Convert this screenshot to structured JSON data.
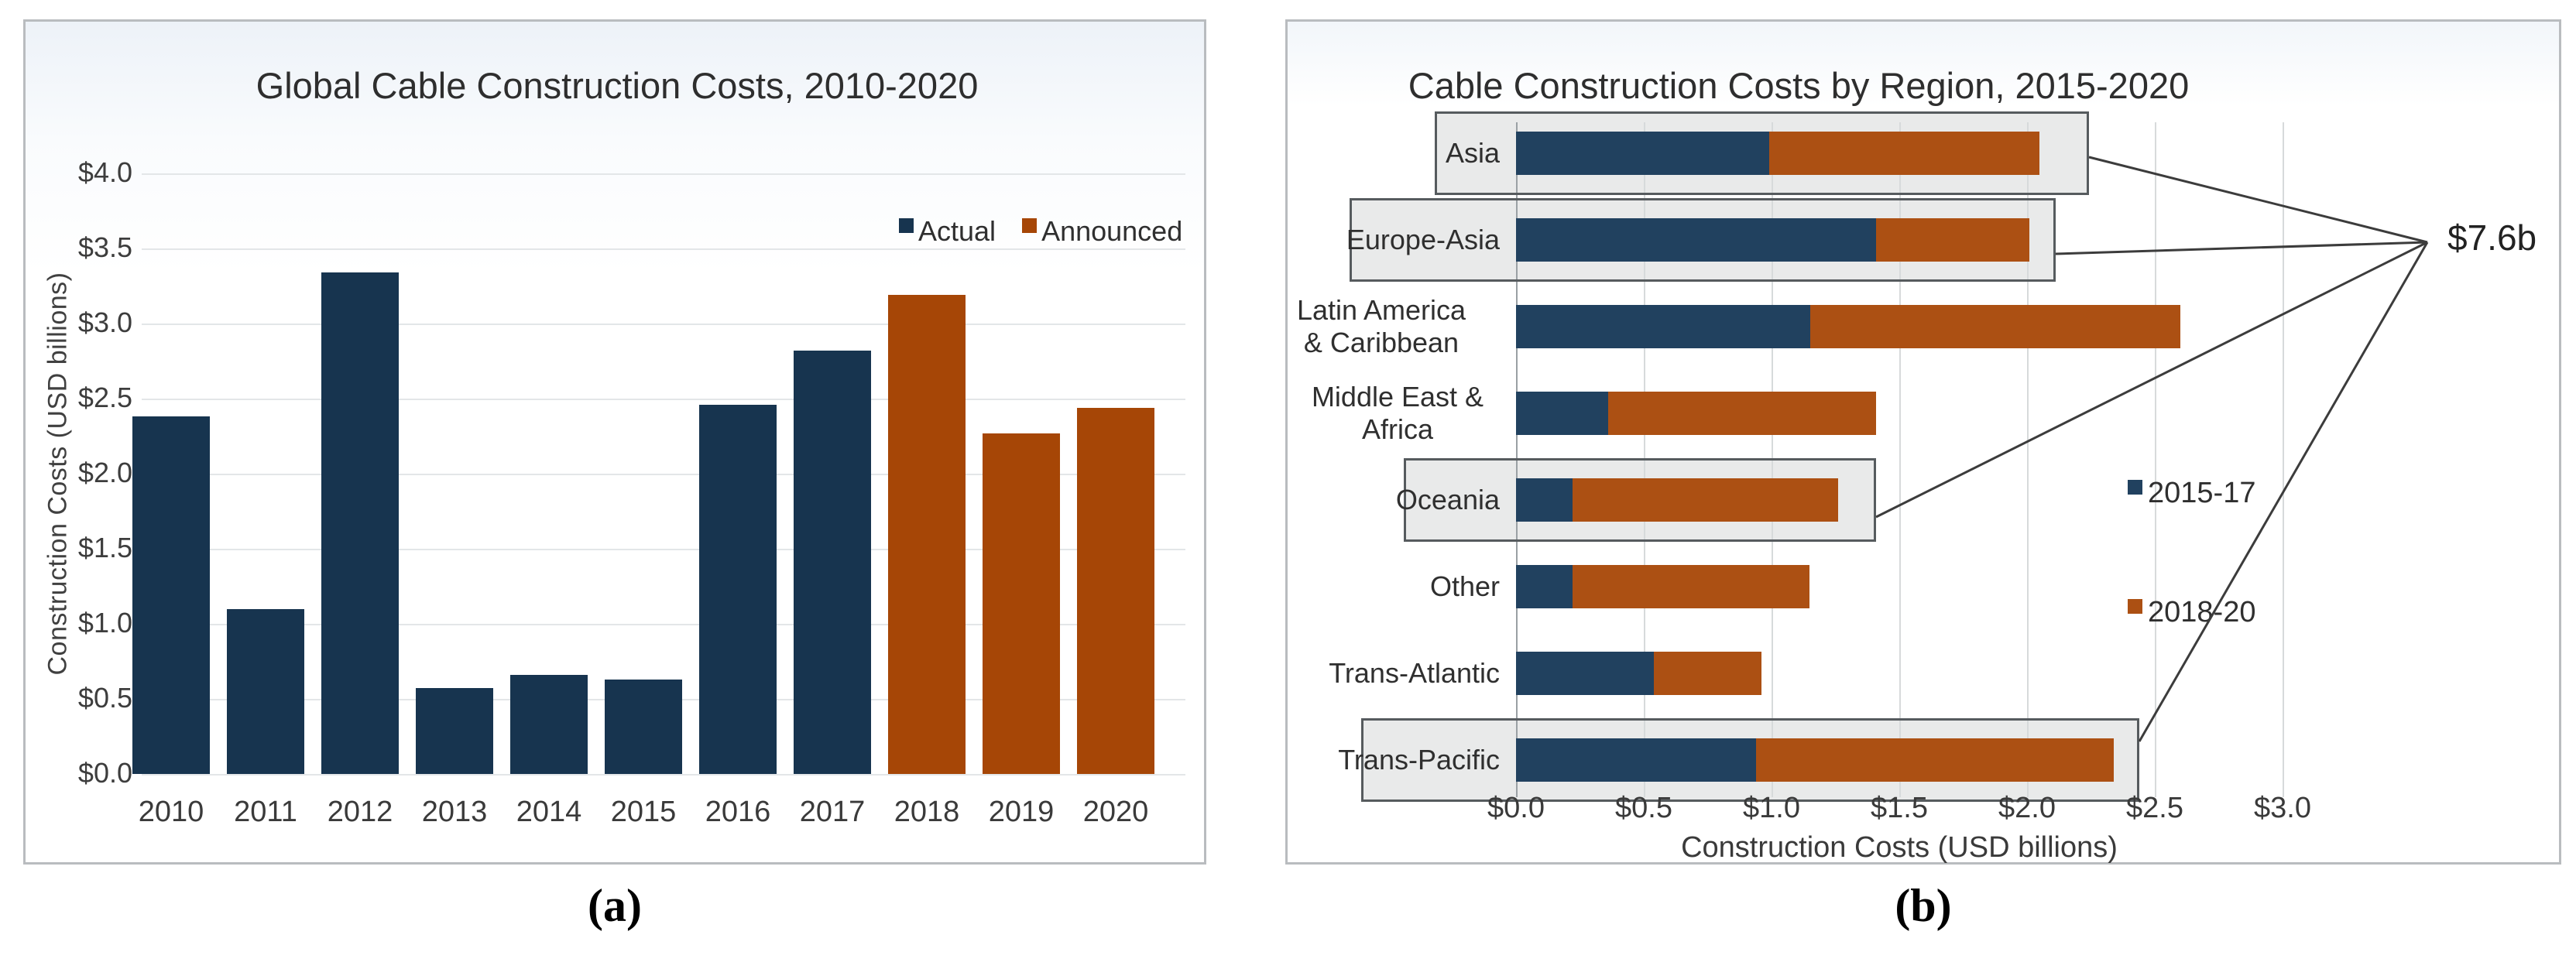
{
  "colors": {
    "actual_blue": "#17344f",
    "announced_orange": "#a64606",
    "right_blue": "#21415f",
    "right_orange": "#ac5013",
    "box_fill": "#e9eaea",
    "box_border": "#565b5e",
    "grid_light": "#e3e6e8",
    "annotation_line": "#3c3c3c"
  },
  "captions": {
    "a": "(a)",
    "b": "(b)"
  },
  "chart_data": [
    {
      "id": "global",
      "type": "bar",
      "title": "Global Cable Construction Costs, 2010-2020",
      "ylabel": "Construction Costs (USD billions)",
      "categories": [
        "2010",
        "2011",
        "2012",
        "2013",
        "2014",
        "2015",
        "2016",
        "2017",
        "2018",
        "2019",
        "2020"
      ],
      "values": [
        2.38,
        1.1,
        3.34,
        0.57,
        0.66,
        0.63,
        2.46,
        2.82,
        3.19,
        2.27,
        2.44
      ],
      "status": [
        "Actual",
        "Actual",
        "Actual",
        "Actual",
        "Actual",
        "Actual",
        "Actual",
        "Actual",
        "Announced",
        "Announced",
        "Announced"
      ],
      "legend": [
        "Actual",
        "Announced"
      ],
      "yticks_desc": [
        "$4.0",
        "$3.5",
        "$3.0",
        "$2.5",
        "$2.0",
        "$1.5",
        "$1.0",
        "$0.5",
        "$0.0"
      ],
      "ylim": [
        0,
        4
      ],
      "grid": "horizontal"
    },
    {
      "id": "regional",
      "type": "stacked-bar-horizontal",
      "title": "Cable Construction Costs by Region, 2015-2020",
      "xlabel": "Construction Costs (USD billions)",
      "categories": [
        "Asia",
        "Europe-Asia",
        "Latin America & Caribbean",
        "Middle East & Africa",
        "Oceania",
        "Other",
        "Trans-Atlantic",
        "Trans-Pacific"
      ],
      "series": [
        {
          "name": "2015-17",
          "values": [
            0.99,
            1.41,
            1.15,
            0.36,
            0.22,
            0.22,
            0.54,
            0.94
          ]
        },
        {
          "name": "2018-20",
          "values": [
            1.06,
            0.6,
            1.45,
            1.05,
            1.04,
            0.93,
            0.42,
            1.4
          ]
        }
      ],
      "totals": [
        2.05,
        2.01,
        2.6,
        1.41,
        1.26,
        1.15,
        0.96,
        2.34
      ],
      "xticks": [
        "$0.0",
        "$0.5",
        "$1.0",
        "$1.5",
        "$2.0",
        "$2.5",
        "$3.0"
      ],
      "xlim": [
        0,
        3
      ],
      "highlighted_regions": [
        "Asia",
        "Europe-Asia",
        "Oceania",
        "Trans-Pacific"
      ],
      "annotation": "$7.6b",
      "grid": "vertical"
    }
  ]
}
